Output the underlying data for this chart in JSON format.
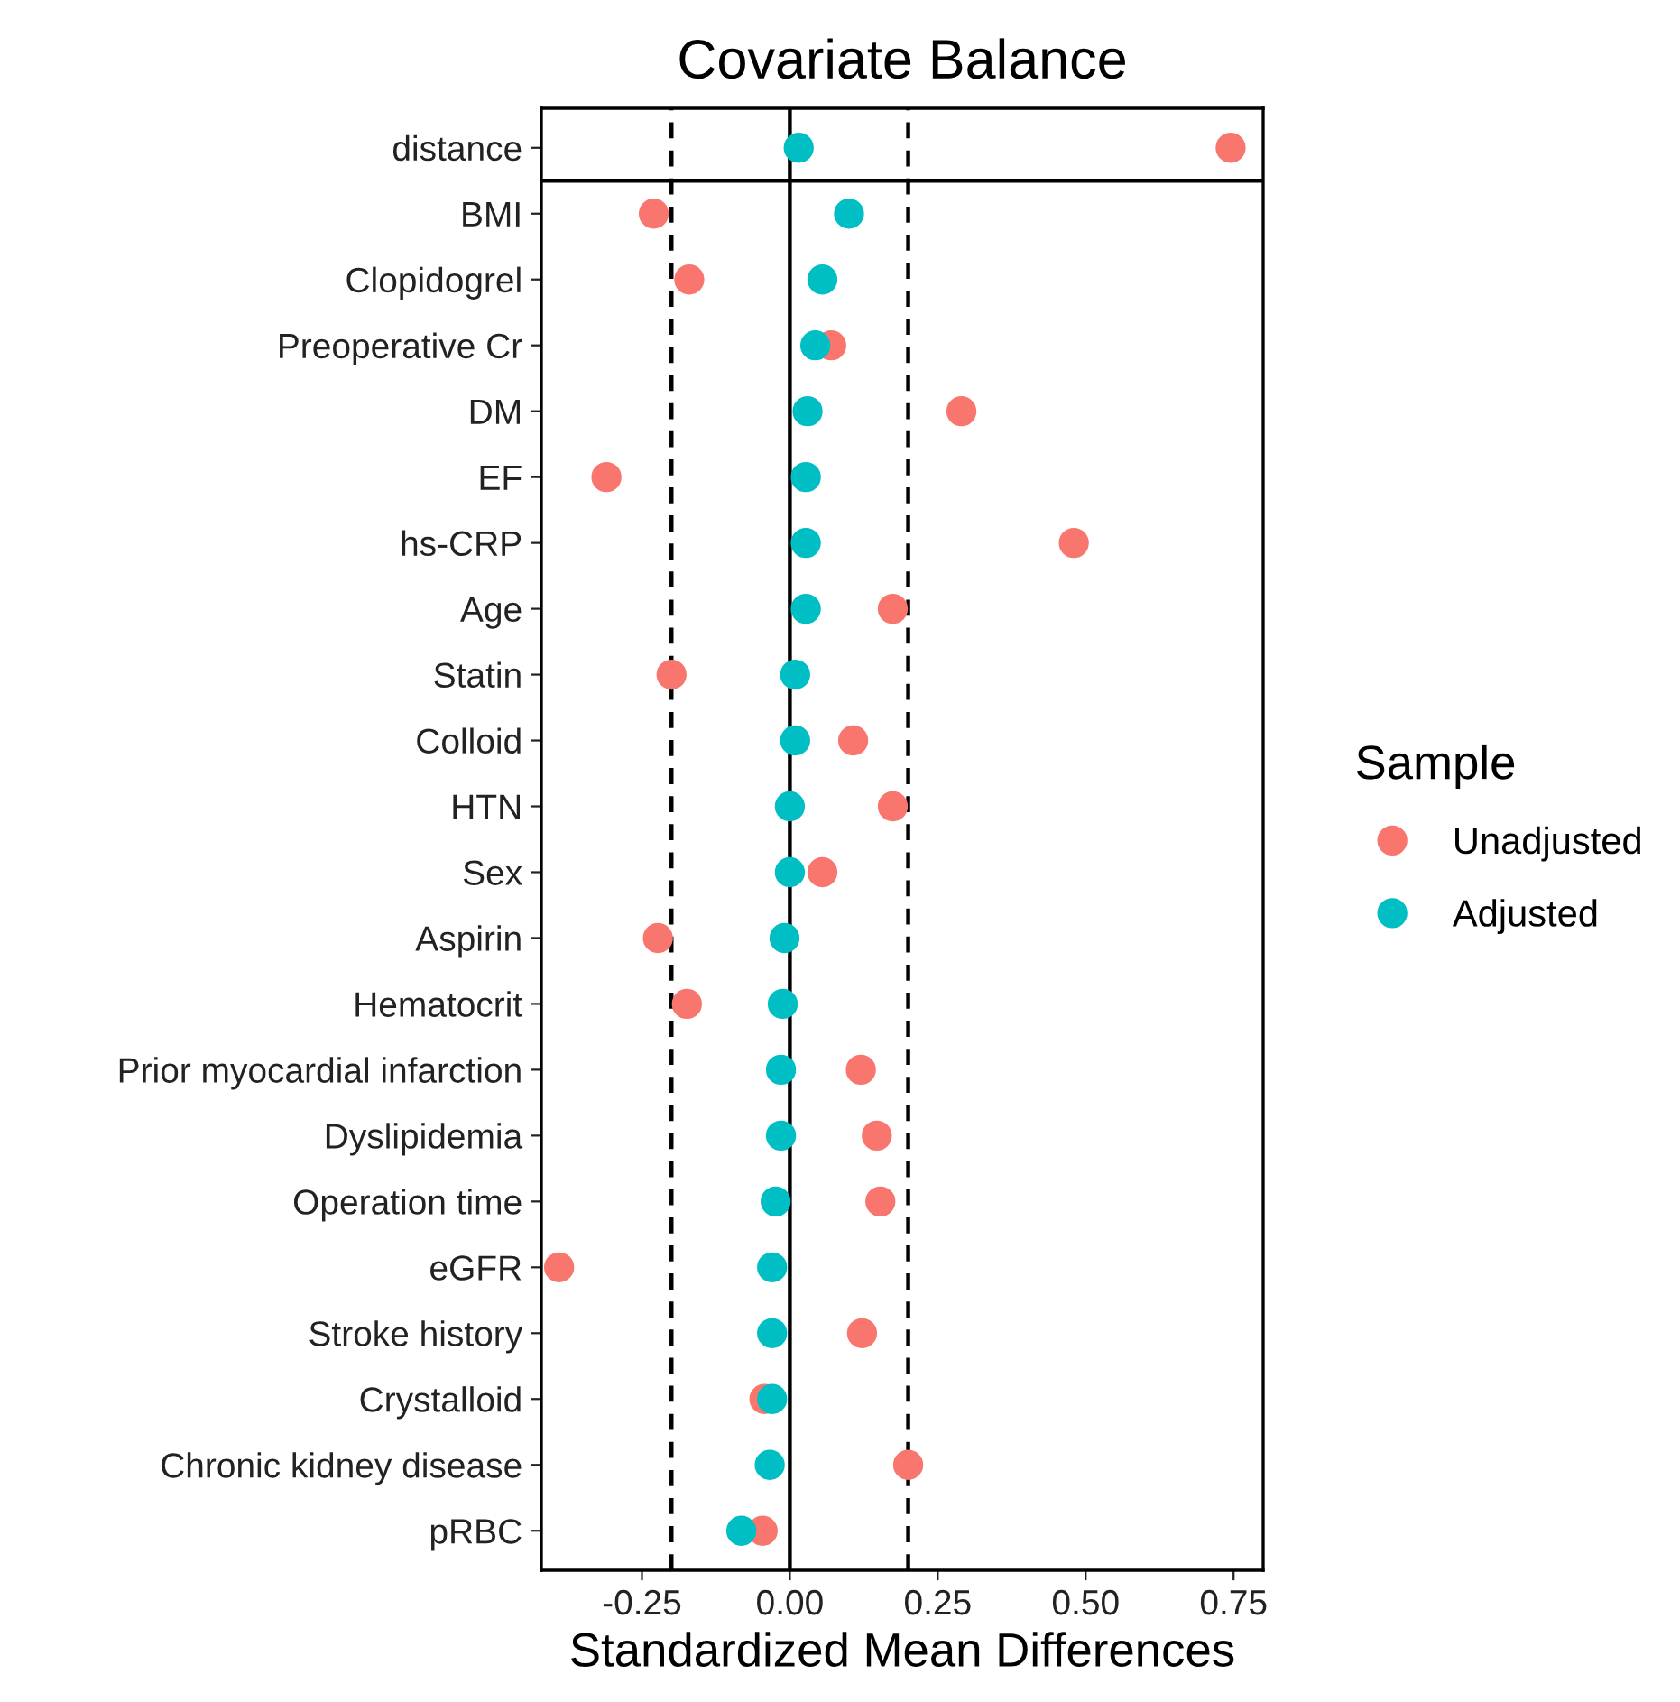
{
  "chart_data": {
    "type": "scatter",
    "orientation": "horizontal",
    "title": "Covariate Balance",
    "xlabel": "Standardized Mean Differences",
    "legend_title": "Sample",
    "legend": "right",
    "marker": "circle",
    "grid": false,
    "categories": [
      "distance",
      "BMI",
      "Clopidogrel",
      "Preoperative Cr",
      "DM",
      "EF",
      "hs-CRP",
      "Age",
      "Statin",
      "Colloid",
      "HTN",
      "Sex",
      "Aspirin",
      "Hematocrit",
      "Prior myocardial infarction",
      "Dyslipidemia",
      "Operation time",
      "eGFR",
      "Stroke history",
      "Crystalloid",
      "Chronic kidney disease",
      "pRBC"
    ],
    "series": [
      {
        "name": "Unadjusted",
        "color": "#f8766d",
        "values": [
          0.745,
          -0.23,
          -0.17,
          0.07,
          0.29,
          -0.31,
          0.48,
          0.174,
          -0.2,
          0.107,
          0.174,
          0.055,
          -0.223,
          -0.174,
          0.12,
          0.147,
          0.153,
          -0.39,
          0.122,
          -0.043,
          0.2,
          -0.046
        ]
      },
      {
        "name": "Adjusted",
        "color": "#00bfc4",
        "values": [
          0.015,
          0.1,
          0.055,
          0.043,
          0.03,
          0.027,
          0.027,
          0.027,
          0.009,
          0.009,
          0.0,
          0.0,
          -0.009,
          -0.012,
          -0.015,
          -0.015,
          -0.024,
          -0.03,
          -0.03,
          -0.03,
          -0.034,
          -0.082
        ]
      }
    ],
    "xlim": [
      -0.42,
      0.8
    ],
    "xticks": [
      {
        "value": -0.25,
        "label": "-0.25"
      },
      {
        "value": 0,
        "label": "0.00"
      },
      {
        "value": 0.25,
        "label": "0.25"
      },
      {
        "value": 0.5,
        "label": "0.50"
      },
      {
        "value": 0.75,
        "label": "0.75"
      }
    ],
    "ref_lines": [
      {
        "axis": "x",
        "value": -0.2,
        "color": "#000000",
        "line_style": "dashed"
      },
      {
        "axis": "x",
        "value": 0.2,
        "color": "#000000",
        "line_style": "dashed"
      },
      {
        "axis": "x",
        "value": 0,
        "color": "#000000",
        "line_style": "solid"
      }
    ]
  }
}
